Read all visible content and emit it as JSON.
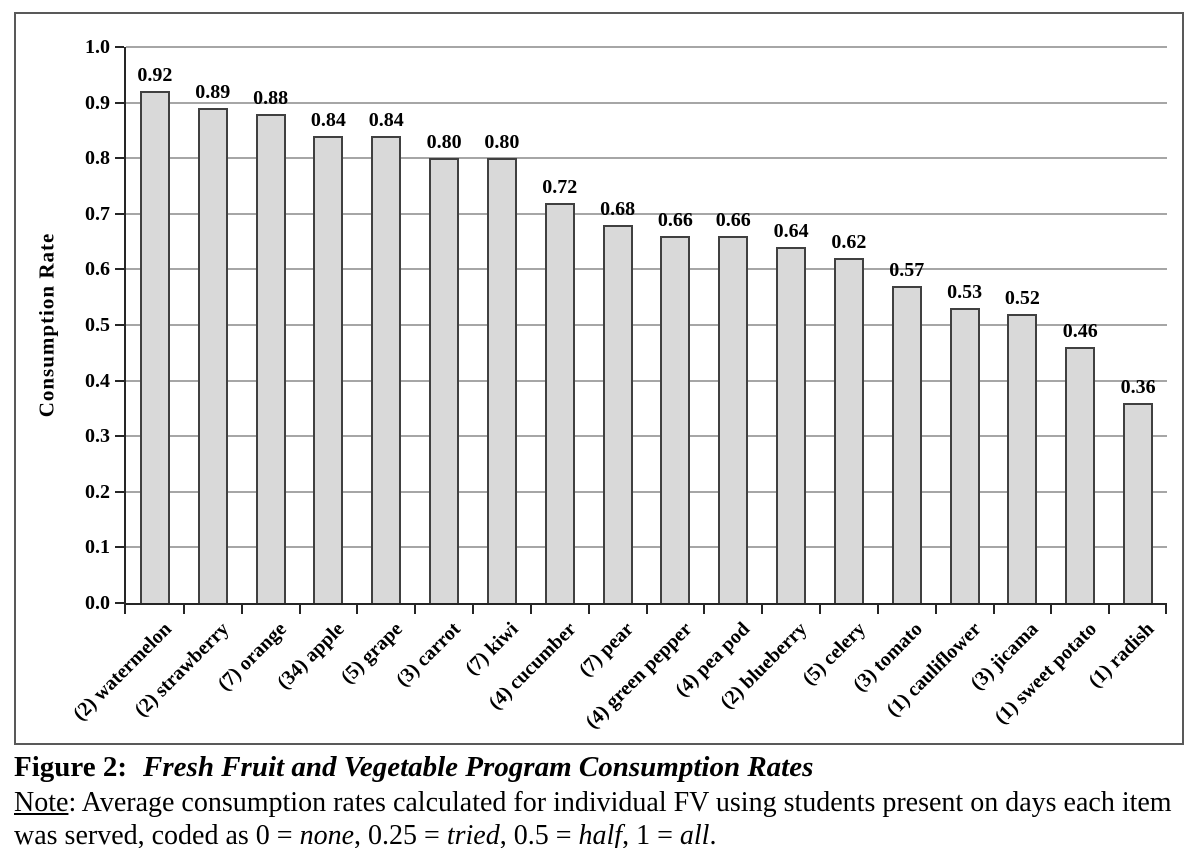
{
  "chart_data": {
    "type": "bar",
    "title": "",
    "xlabel": "",
    "ylabel": "Consumption Rate",
    "ylim": [
      0.0,
      1.0
    ],
    "ytick_step": 0.1,
    "yticks": [
      "0.0",
      "0.1",
      "0.2",
      "0.3",
      "0.4",
      "0.5",
      "0.6",
      "0.7",
      "0.8",
      "0.9",
      "1.0"
    ],
    "grid": true,
    "legend": false,
    "bar_fill_color": "#d9d9d9",
    "bar_border_color": "#404040",
    "gridline_color": "#a6a6a6",
    "axis_color": "#262626",
    "categories": [
      "(2) watermelon",
      "(2) strawberry",
      "(7) orange",
      "(34) apple",
      "(5) grape",
      "(3) carrot",
      "(7) kiwi",
      "(4) cucumber",
      "(7) pear",
      "(4) green pepper",
      "(4) pea pod",
      "(2) blueberry",
      "(5) celery",
      "(3) tomato",
      "(1) cauliflower",
      "(3) jicama",
      "(1) sweet potato",
      "(1) radish"
    ],
    "values": [
      0.92,
      0.89,
      0.88,
      0.84,
      0.84,
      0.8,
      0.8,
      0.72,
      0.68,
      0.66,
      0.66,
      0.64,
      0.62,
      0.57,
      0.53,
      0.52,
      0.46,
      0.36
    ],
    "value_labels": [
      "0.92",
      "0.89",
      "0.88",
      "0.84",
      "0.84",
      "0.80",
      "0.80",
      "0.72",
      "0.68",
      "0.66",
      "0.66",
      "0.64",
      "0.62",
      "0.57",
      "0.53",
      "0.52",
      "0.46",
      "0.36"
    ]
  },
  "caption": {
    "figure_label": "Figure 2:",
    "figure_title": "Fresh Fruit and Vegetable Program Consumption Rates",
    "note_label": "Note",
    "note_p1": ": Average consumption rates calculated for individual FV using students present on days each item was served, coded as 0 = ",
    "note_i1": "none",
    "note_p2": ", 0.25 = ",
    "note_i2": "tried",
    "note_p3": ", 0.5 = ",
    "note_i3": "half",
    "note_p4": ", 1 = ",
    "note_i4": "all",
    "note_p5": "."
  }
}
